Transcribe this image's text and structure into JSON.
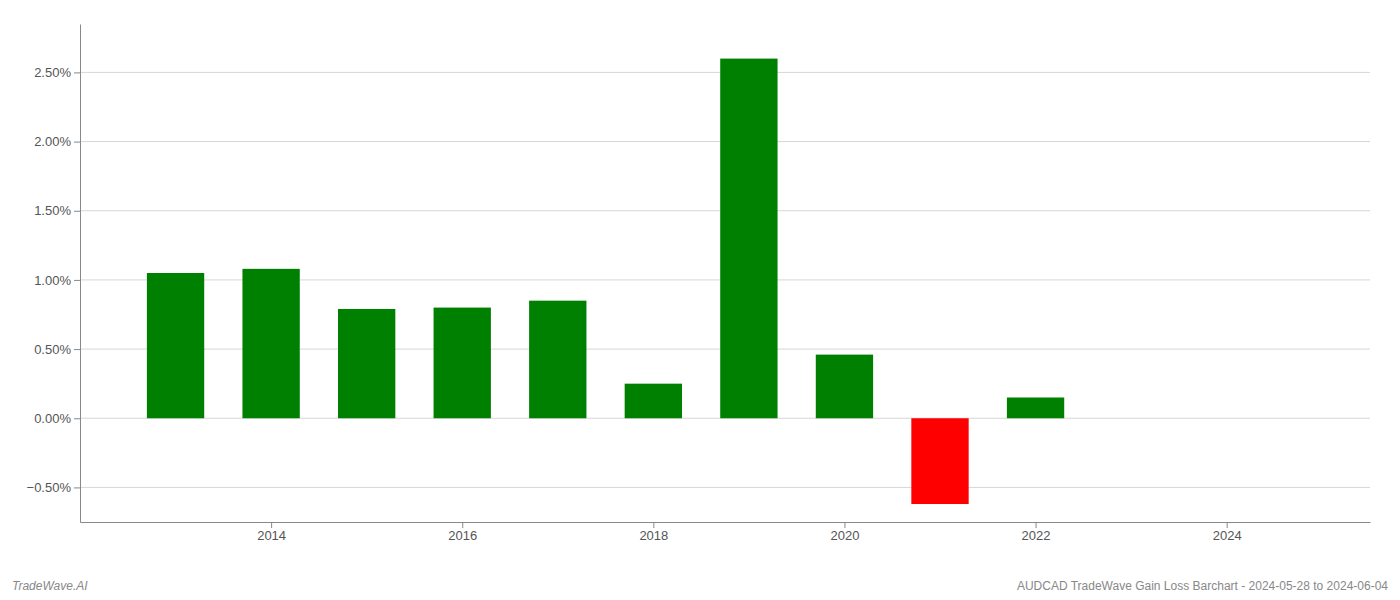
{
  "chart_data": {
    "type": "bar",
    "x": [
      2013,
      2014,
      2015,
      2016,
      2017,
      2018,
      2019,
      2020,
      2021,
      2022,
      2023
    ],
    "values": [
      1.05,
      1.08,
      0.79,
      0.8,
      0.85,
      0.25,
      2.6,
      0.46,
      -0.62,
      0.15,
      0.0
    ],
    "colors": [
      "#008000",
      "#008000",
      "#008000",
      "#008000",
      "#008000",
      "#008000",
      "#008000",
      "#008000",
      "#ff0000",
      "#008000",
      "#ffffff"
    ],
    "xlim": [
      2012.0,
      2025.5
    ],
    "xticks": [
      2014,
      2016,
      2018,
      2020,
      2022,
      2024
    ],
    "ylim": [
      -0.75,
      2.85
    ],
    "yticks": [
      {
        "value": -0.5,
        "label": "−0.50%"
      },
      {
        "value": 0.0,
        "label": "0.00%"
      },
      {
        "value": 0.5,
        "label": "0.50%"
      },
      {
        "value": 1.0,
        "label": "1.00%"
      },
      {
        "value": 1.5,
        "label": "1.50%"
      },
      {
        "value": 2.0,
        "label": "2.00%"
      },
      {
        "value": 2.5,
        "label": "2.50%"
      }
    ],
    "grid": true,
    "annotations": [
      "TradeWave.AI",
      "AUDCAD TradeWave Gain Loss Barchart - 2024-05-28 to 2024-06-04"
    ]
  }
}
